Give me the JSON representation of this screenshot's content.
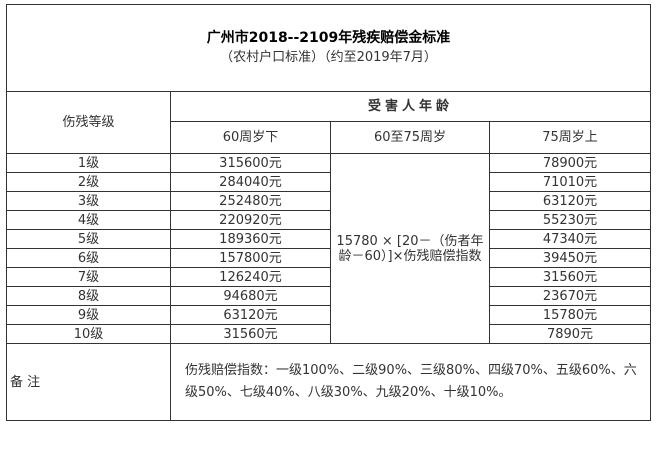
{
  "title": "广州市2018--2109年残疾赔偿金标准",
  "subtitle": "（农村户口标准）（约至2019年7月）",
  "headers": {
    "grade": "伤残等级",
    "age_group": "受害人年龄",
    "col_under60": "60周岁下",
    "col_60to75": "60至75周岁",
    "col_over75": "75周岁上"
  },
  "rows": [
    {
      "grade": "1级",
      "under60": "315600元",
      "over75": "78900元"
    },
    {
      "grade": "2级",
      "under60": "284040元",
      "over75": "71010元"
    },
    {
      "grade": "3级",
      "under60": "252480元",
      "over75": "63120元"
    },
    {
      "grade": "4级",
      "under60": "220920元",
      "over75": "55230元"
    },
    {
      "grade": "5级",
      "under60": "189360元",
      "over75": "47340元"
    },
    {
      "grade": "6级",
      "under60": "157800元",
      "over75": "39450元"
    },
    {
      "grade": "7级",
      "under60": "126240元",
      "over75": "31560元"
    },
    {
      "grade": "8级",
      "under60": "94680元",
      "over75": "23670元"
    },
    {
      "grade": "9级",
      "under60": "63120元",
      "over75": "15780元"
    },
    {
      "grade": "10级",
      "under60": "31560元",
      "over75": "7890元"
    }
  ],
  "formula_60to75": "15780 × [20－（伤者年龄－60）]×伤残赔偿指数",
  "remark_label": "备 注",
  "remark_text": "伤残赔偿指数：一级100%、二级90%、三级80%、四级70%、五级60%、六级50%、七级40%、八级30%、九级20%、十级10%。"
}
